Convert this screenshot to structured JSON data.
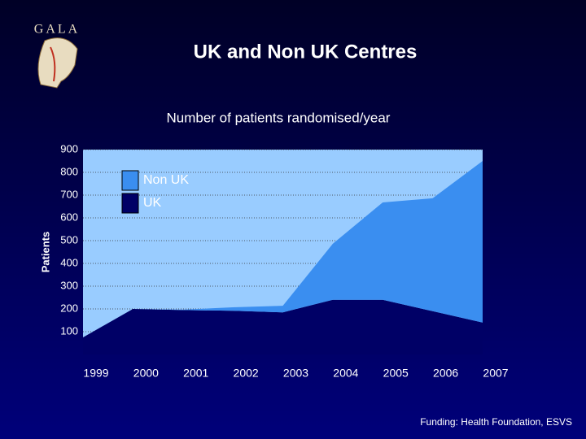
{
  "logo_text": "GALA",
  "title": "UK and Non UK Centres",
  "footer": "Funding: Health Foundation, ESVS",
  "chart_data": {
    "type": "stacked-area",
    "title": "Number of patients randomised/year",
    "y_label": "Patients",
    "categories": [
      "1999",
      "2000",
      "2001",
      "2002",
      "2003",
      "2004",
      "2005",
      "2006",
      "2007"
    ],
    "series": [
      {
        "name": "UK",
        "color": "#000066",
        "values": [
          75,
          200,
          195,
          192,
          185,
          240,
          240,
          190,
          140
        ]
      },
      {
        "name": "Non UK",
        "color": "#3a8ef0",
        "values": [
          0,
          0,
          2,
          15,
          29,
          246,
          428,
          496,
          710
        ]
      }
    ],
    "ylim": [
      0,
      900
    ],
    "yticks": [
      100,
      200,
      300,
      400,
      500,
      600,
      700,
      800,
      900
    ],
    "grid": true,
    "plot_background": "#99ccff"
  }
}
